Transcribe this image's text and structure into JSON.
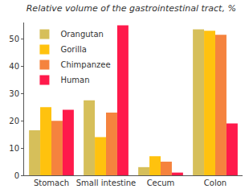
{
  "chart_data": {
    "type": "bar",
    "title": "Relative volume of the gastrointestinal tract, %",
    "categories": [
      "Stomach",
      "Small intestine",
      "Cecum",
      "Colon"
    ],
    "series": [
      {
        "name": "Orangutan",
        "color": "#d6bf5a",
        "values": [
          16.5,
          27.5,
          3,
          53.5
        ]
      },
      {
        "name": "Gorilla",
        "color": "#ffc20e",
        "values": [
          25,
          14,
          7,
          53
        ]
      },
      {
        "name": "Chimpanzee",
        "color": "#f5833e",
        "values": [
          20,
          23,
          5,
          51.5
        ]
      },
      {
        "name": "Human",
        "color": "#ff1a4b",
        "values": [
          24,
          55,
          1,
          19
        ]
      }
    ],
    "ylim": [
      0,
      56
    ],
    "yticks": [
      0,
      10,
      20,
      30,
      40,
      50
    ],
    "grid": false,
    "legend": "top-left"
  }
}
